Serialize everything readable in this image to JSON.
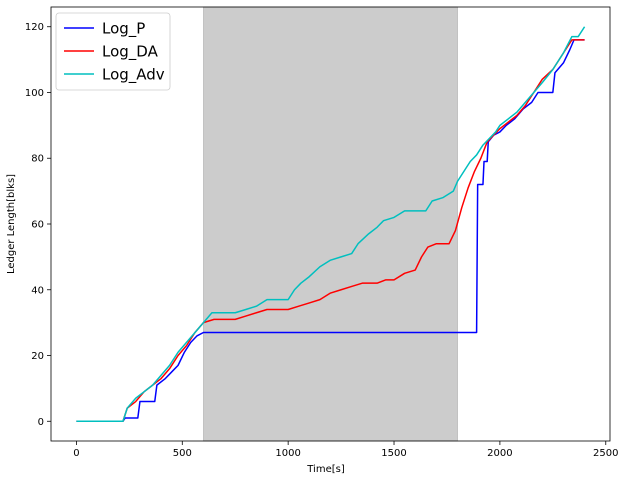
{
  "chart_data": {
    "type": "line",
    "title": "",
    "xlabel": "Time[s]",
    "ylabel": "Ledger Length[blks]",
    "xlim": [
      -120,
      2520
    ],
    "ylim": [
      -6,
      126
    ],
    "xticks": [
      0,
      500,
      1000,
      1500,
      2000,
      2500
    ],
    "yticks": [
      0,
      20,
      40,
      60,
      80,
      100,
      120
    ],
    "grid": false,
    "legend_position": "top-left",
    "shaded_region": {
      "x_start": 600,
      "x_end": 1800,
      "color": "#cccccc"
    },
    "series": [
      {
        "name": "Log_P",
        "color": "#0000ff",
        "points": [
          [
            0,
            0
          ],
          [
            220,
            0
          ],
          [
            230,
            1
          ],
          [
            290,
            1
          ],
          [
            300,
            6
          ],
          [
            370,
            6
          ],
          [
            380,
            11
          ],
          [
            420,
            13
          ],
          [
            450,
            15
          ],
          [
            480,
            17
          ],
          [
            510,
            21
          ],
          [
            540,
            24
          ],
          [
            570,
            26
          ],
          [
            600,
            27
          ],
          [
            1890,
            27
          ],
          [
            1895,
            72
          ],
          [
            1920,
            72
          ],
          [
            1925,
            79
          ],
          [
            1940,
            79
          ],
          [
            1945,
            85
          ],
          [
            1970,
            87
          ],
          [
            2000,
            88
          ],
          [
            2030,
            90
          ],
          [
            2070,
            92
          ],
          [
            2110,
            95
          ],
          [
            2150,
            97
          ],
          [
            2180,
            100
          ],
          [
            2250,
            100
          ],
          [
            2260,
            106
          ],
          [
            2300,
            109
          ],
          [
            2330,
            113
          ],
          [
            2350,
            116
          ],
          [
            2400,
            116
          ]
        ]
      },
      {
        "name": "Log_DA",
        "color": "#ff0000",
        "points": [
          [
            0,
            0
          ],
          [
            220,
            0
          ],
          [
            240,
            4
          ],
          [
            280,
            6
          ],
          [
            320,
            9
          ],
          [
            360,
            11
          ],
          [
            400,
            13
          ],
          [
            440,
            16
          ],
          [
            480,
            20
          ],
          [
            520,
            23
          ],
          [
            560,
            27
          ],
          [
            600,
            30
          ],
          [
            650,
            31
          ],
          [
            750,
            31
          ],
          [
            800,
            32
          ],
          [
            850,
            33
          ],
          [
            900,
            34
          ],
          [
            1000,
            34
          ],
          [
            1050,
            35
          ],
          [
            1100,
            36
          ],
          [
            1150,
            37
          ],
          [
            1200,
            39
          ],
          [
            1250,
            40
          ],
          [
            1300,
            41
          ],
          [
            1350,
            42
          ],
          [
            1420,
            42
          ],
          [
            1460,
            43
          ],
          [
            1500,
            43
          ],
          [
            1550,
            45
          ],
          [
            1600,
            46
          ],
          [
            1630,
            50
          ],
          [
            1660,
            53
          ],
          [
            1700,
            54
          ],
          [
            1760,
            54
          ],
          [
            1790,
            58
          ],
          [
            1820,
            65
          ],
          [
            1850,
            71
          ],
          [
            1880,
            76
          ],
          [
            1910,
            80
          ],
          [
            1940,
            85
          ],
          [
            1970,
            87
          ],
          [
            2000,
            89
          ],
          [
            2040,
            91
          ],
          [
            2080,
            93
          ],
          [
            2120,
            96
          ],
          [
            2160,
            100
          ],
          [
            2200,
            104
          ],
          [
            2250,
            107
          ],
          [
            2300,
            112
          ],
          [
            2340,
            116
          ],
          [
            2400,
            116
          ]
        ]
      },
      {
        "name": "Log_Adv",
        "color": "#00bfbf",
        "points": [
          [
            0,
            0
          ],
          [
            220,
            0
          ],
          [
            240,
            4
          ],
          [
            280,
            7
          ],
          [
            320,
            9
          ],
          [
            360,
            11
          ],
          [
            400,
            14
          ],
          [
            440,
            17
          ],
          [
            480,
            21
          ],
          [
            520,
            24
          ],
          [
            560,
            27
          ],
          [
            600,
            30
          ],
          [
            640,
            33
          ],
          [
            750,
            33
          ],
          [
            800,
            34
          ],
          [
            850,
            35
          ],
          [
            900,
            37
          ],
          [
            1000,
            37
          ],
          [
            1030,
            40
          ],
          [
            1060,
            42
          ],
          [
            1100,
            44
          ],
          [
            1150,
            47
          ],
          [
            1200,
            49
          ],
          [
            1250,
            50
          ],
          [
            1300,
            51
          ],
          [
            1330,
            54
          ],
          [
            1380,
            57
          ],
          [
            1420,
            59
          ],
          [
            1450,
            61
          ],
          [
            1500,
            62
          ],
          [
            1550,
            64
          ],
          [
            1650,
            64
          ],
          [
            1680,
            67
          ],
          [
            1730,
            68
          ],
          [
            1780,
            70
          ],
          [
            1800,
            73
          ],
          [
            1830,
            76
          ],
          [
            1860,
            79
          ],
          [
            1890,
            81
          ],
          [
            1920,
            84
          ],
          [
            1950,
            86
          ],
          [
            1980,
            88
          ],
          [
            2000,
            90
          ],
          [
            2040,
            92
          ],
          [
            2080,
            94
          ],
          [
            2120,
            97
          ],
          [
            2160,
            100
          ],
          [
            2200,
            103
          ],
          [
            2250,
            107
          ],
          [
            2300,
            112
          ],
          [
            2340,
            117
          ],
          [
            2370,
            117
          ],
          [
            2400,
            120
          ]
        ]
      }
    ]
  }
}
